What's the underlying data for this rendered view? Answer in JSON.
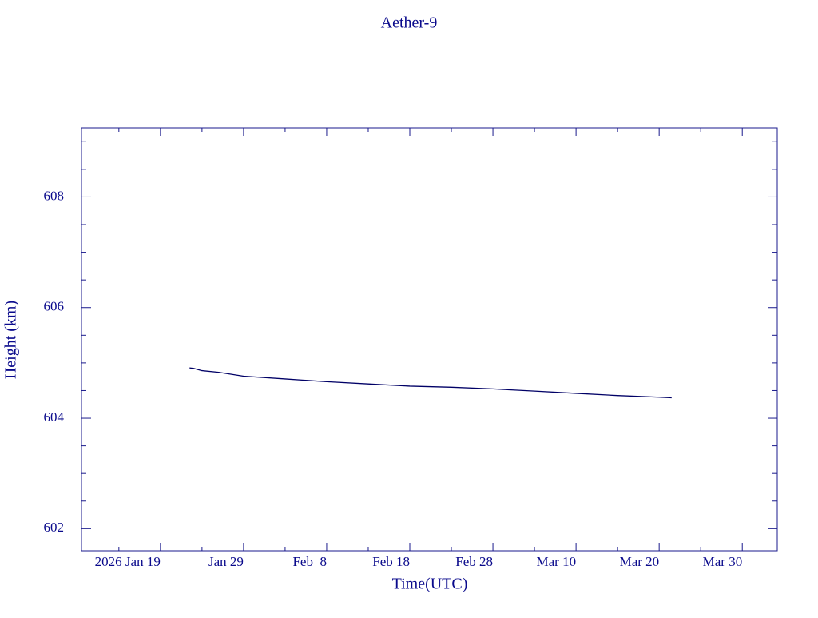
{
  "chart_data": {
    "type": "line",
    "title": "Aether-9",
    "x_label": "Time(UTC)",
    "y_label": "Height (km)",
    "x": [
      "2026-01-22T12:00",
      "2026-01-23T00:00",
      "2026-01-24T00:00",
      "2026-01-26T00:00",
      "2026-01-29T00:00",
      "2026-02-03T00:00",
      "2026-02-08T00:00",
      "2026-02-13T00:00",
      "2026-02-18T00:00",
      "2026-02-23T00:00",
      "2026-02-28T00:00",
      "2026-03-05T00:00",
      "2026-03-10T00:00",
      "2026-03-15T00:00",
      "2026-03-20T00:00",
      "2026-03-21T12:00"
    ],
    "series": [
      {
        "name": "Height",
        "color": "#000066",
        "values": [
          604.91,
          604.9,
          604.86,
          604.83,
          604.76,
          604.71,
          604.66,
          604.62,
          604.58,
          604.56,
          604.53,
          604.49,
          604.45,
          604.41,
          604.38,
          604.37
        ]
      }
    ],
    "xlim": [
      "2026-01-09T12:00",
      "2026-04-03T05:00"
    ],
    "xticks": [
      {
        "value": "2026-01-19T00:00",
        "label": "2026 Jan 19"
      },
      {
        "value": "2026-01-29T00:00",
        "label": "Jan 29"
      },
      {
        "value": "2026-02-08T00:00",
        "label": "Feb  8"
      },
      {
        "value": "2026-02-18T00:00",
        "label": "Feb 18"
      },
      {
        "value": "2026-02-28T00:00",
        "label": "Feb 28"
      },
      {
        "value": "2026-03-10T00:00",
        "label": "Mar 10"
      },
      {
        "value": "2026-03-20T00:00",
        "label": "Mar 20"
      },
      {
        "value": "2026-03-30T00:00",
        "label": "Mar 30"
      }
    ],
    "xminorticks": [
      "2026-01-14T00:00",
      "2026-01-24T00:00",
      "2026-02-03T00:00",
      "2026-02-13T00:00",
      "2026-02-23T00:00",
      "2026-03-05T00:00",
      "2026-03-15T00:00",
      "2026-03-25T00:00"
    ],
    "ylim": [
      601.6,
      609.25
    ],
    "yticks": [
      602,
      604,
      606,
      608
    ],
    "yminorticks": [
      602.5,
      603,
      603.5,
      604.5,
      605,
      605.5,
      606.5,
      607,
      607.5,
      608.5,
      609
    ],
    "axis_color": "#1a1a8c"
  }
}
